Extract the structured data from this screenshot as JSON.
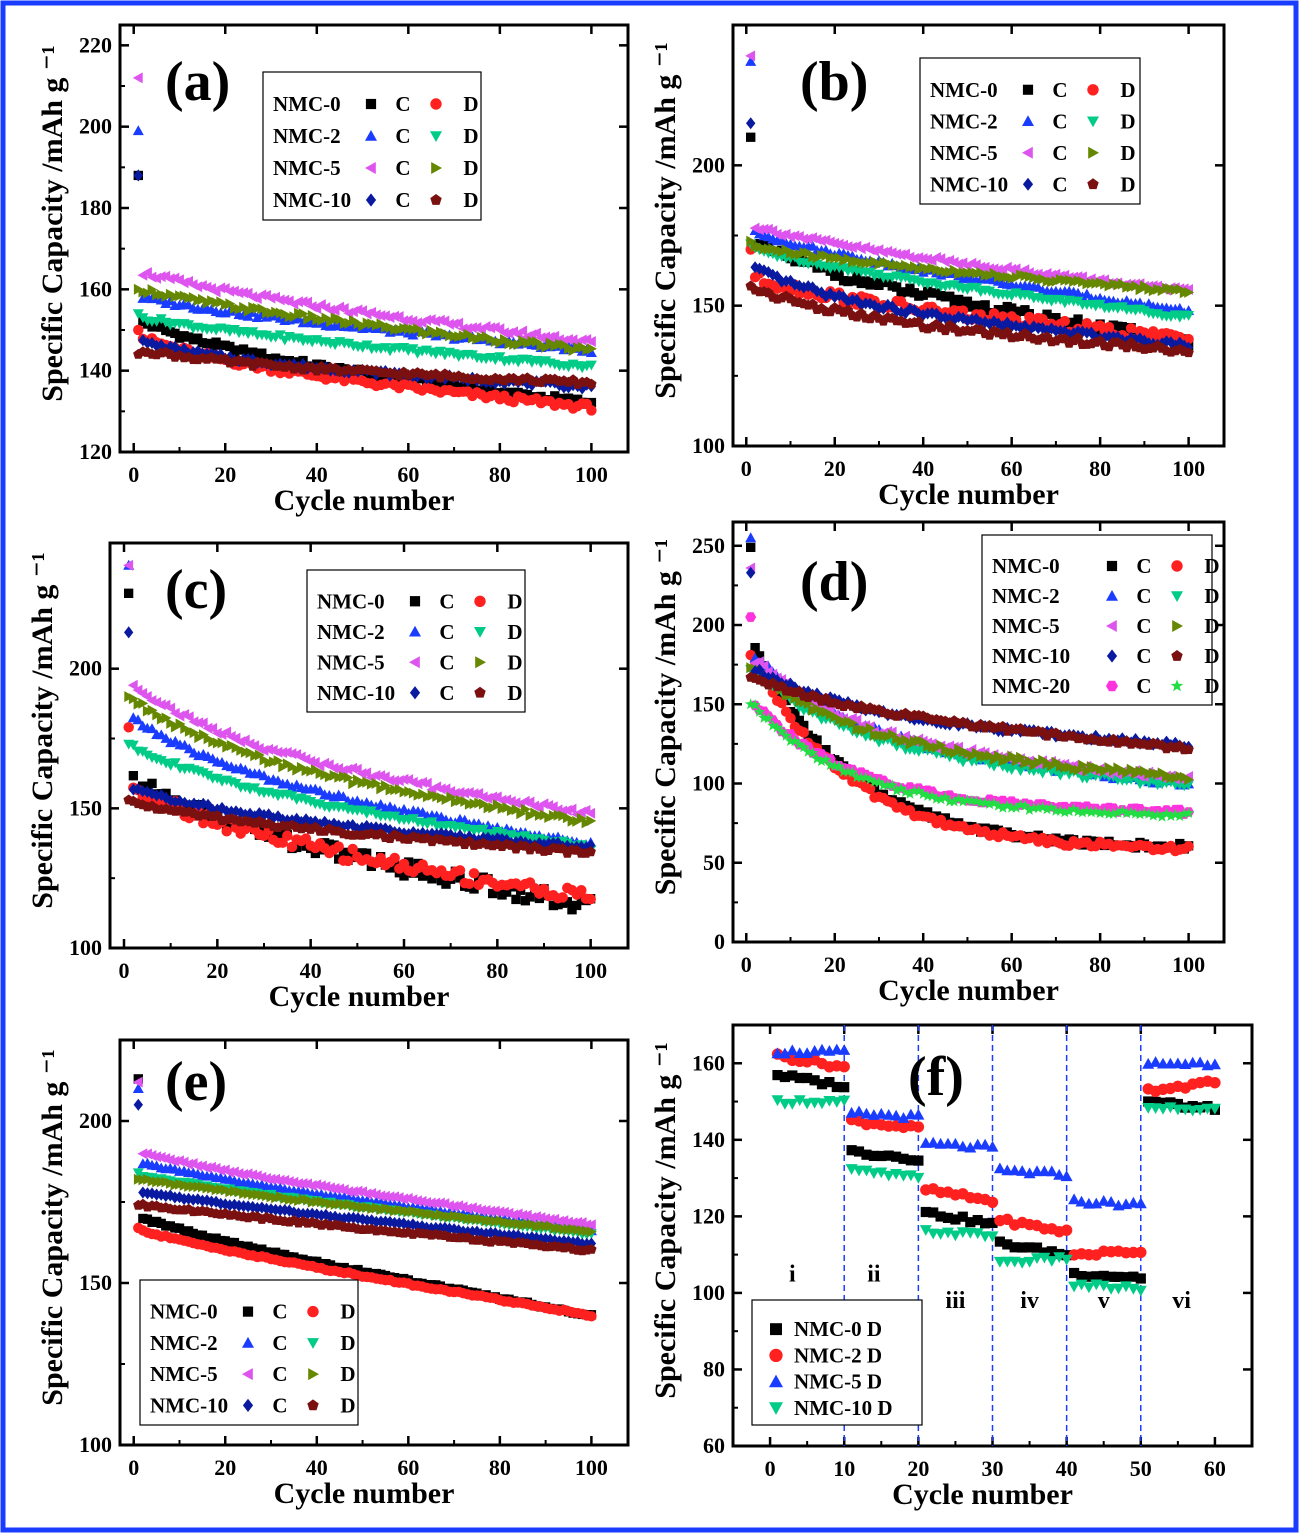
{
  "figure": {
    "border_color": "#1a3cff"
  },
  "legend_labels": {
    "C": "C",
    "D": "D"
  },
  "chart_data": [
    {
      "id": "a",
      "type": "scatter",
      "panel_label": "(a)",
      "xlabel": "Cycle number",
      "ylabel": "Specific Capacity /mAh g",
      "ylabel_sup": "-1",
      "xlim": [
        -3,
        108
      ],
      "ylim": [
        120,
        225
      ],
      "xticks": [
        0,
        20,
        40,
        60,
        80,
        100
      ],
      "yticks": [
        120,
        140,
        160,
        180,
        200,
        220
      ],
      "legend": {
        "position": "top-center",
        "entries": [
          "NMC-0",
          "NMC-2",
          "NMC-5",
          "NMC-10"
        ]
      },
      "series": [
        {
          "name": "NMC-0 C",
          "marker": "square",
          "color": "#000000",
          "first": 188,
          "start": 152,
          "end": 132,
          "curve": 0.35,
          "noise": 0.8
        },
        {
          "name": "NMC-0 D",
          "marker": "circle",
          "color": "#ff2020",
          "first": 150,
          "start": 148,
          "end": 131,
          "curve": 0.35,
          "noise": 0.8
        },
        {
          "name": "NMC-2 C",
          "marker": "triangle-up",
          "color": "#1a3cff",
          "first": 199,
          "start": 158,
          "end": 145,
          "curve": 0.2,
          "noise": 0.6
        },
        {
          "name": "NMC-2 D",
          "marker": "triangle-down",
          "color": "#00cc88",
          "first": 154,
          "start": 153,
          "end": 141,
          "curve": 0.2,
          "noise": 0.6
        },
        {
          "name": "NMC-5 C",
          "marker": "triangle-left",
          "color": "#dd55ee",
          "first": 212,
          "start": 164,
          "end": 147,
          "curve": 0.2,
          "noise": 0.7
        },
        {
          "name": "NMC-5 D",
          "marker": "triangle-right",
          "color": "#668800",
          "first": 160,
          "start": 160,
          "end": 145,
          "curve": 0.2,
          "noise": 0.7
        },
        {
          "name": "NMC-10 C",
          "marker": "diamond",
          "color": "#0a1aa0",
          "first": 188,
          "start": 147,
          "end": 136,
          "curve": 0.4,
          "noise": 0.6
        },
        {
          "name": "NMC-10 D",
          "marker": "pentagon",
          "color": "#7a1010",
          "first": 144,
          "start": 145,
          "end": 137,
          "curve": 0.4,
          "noise": 0.6
        }
      ]
    },
    {
      "id": "b",
      "type": "scatter",
      "panel_label": "(b)",
      "xlabel": "Cycle number",
      "ylabel": "Specific Capacity /mAh g",
      "ylabel_sup": "-1",
      "xlim": [
        -3,
        108
      ],
      "ylim": [
        100,
        250
      ],
      "xticks": [
        0,
        20,
        40,
        60,
        80,
        100
      ],
      "yticks": [
        100,
        150,
        200
      ],
      "legend": {
        "position": "top-right",
        "entries": [
          "NMC-0",
          "NMC-2",
          "NMC-5",
          "NMC-10"
        ]
      },
      "series": [
        {
          "name": "NMC-0 C",
          "marker": "square",
          "color": "#000000",
          "first": 210,
          "start": 172,
          "end": 137,
          "curve": 0.3,
          "noise": 1.8
        },
        {
          "name": "NMC-0 D",
          "marker": "circle",
          "color": "#ff2020",
          "first": 170,
          "start": 160,
          "end": 138,
          "curve": 0.3,
          "noise": 2.0
        },
        {
          "name": "NMC-2 C",
          "marker": "triangle-up",
          "color": "#1a3cff",
          "first": 237,
          "start": 176,
          "end": 148,
          "curve": 0.2,
          "noise": 0.8
        },
        {
          "name": "NMC-2 D",
          "marker": "triangle-down",
          "color": "#00cc88",
          "first": 172,
          "start": 170,
          "end": 146,
          "curve": 0.2,
          "noise": 0.8
        },
        {
          "name": "NMC-5 C",
          "marker": "triangle-left",
          "color": "#dd55ee",
          "first": 239,
          "start": 178,
          "end": 155,
          "curve": 0.2,
          "noise": 0.8
        },
        {
          "name": "NMC-5 D",
          "marker": "triangle-right",
          "color": "#668800",
          "first": 173,
          "start": 171,
          "end": 155,
          "curve": 0.2,
          "noise": 0.8
        },
        {
          "name": "NMC-10 C",
          "marker": "diamond",
          "color": "#0a1aa0",
          "first": 215,
          "start": 163,
          "end": 136,
          "curve": 0.45,
          "noise": 1.0
        },
        {
          "name": "NMC-10 D",
          "marker": "pentagon",
          "color": "#7a1010",
          "first": 157,
          "start": 156,
          "end": 134,
          "curve": 0.45,
          "noise": 1.2
        }
      ]
    },
    {
      "id": "c",
      "type": "scatter",
      "panel_label": "(c)",
      "xlabel": "Cycle number",
      "ylabel": "Specific Capacity /mAh g",
      "ylabel_sup": "-1",
      "xlim": [
        -3,
        108
      ],
      "ylim": [
        100,
        245
      ],
      "xticks": [
        0,
        20,
        40,
        60,
        80,
        100
      ],
      "yticks": [
        100,
        150,
        200
      ],
      "legend": {
        "position": "top-right",
        "entries": [
          "NMC-0",
          "NMC-2",
          "NMC-5",
          "NMC-10"
        ]
      },
      "series": [
        {
          "name": "NMC-0 C",
          "marker": "square",
          "color": "#000000",
          "first": 227,
          "start": 160,
          "end": 115,
          "curve": 0.3,
          "noise": 3.0
        },
        {
          "name": "NMC-0 D",
          "marker": "circle",
          "color": "#ff2020",
          "first": 179,
          "start": 158,
          "end": 118,
          "curve": 0.35,
          "noise": 2.5
        },
        {
          "name": "NMC-2 C",
          "marker": "triangle-up",
          "color": "#1a3cff",
          "first": 237,
          "start": 182,
          "end": 137,
          "curve": 0.4,
          "noise": 0.8
        },
        {
          "name": "NMC-2 D",
          "marker": "triangle-down",
          "color": "#00cc88",
          "first": 173,
          "start": 172,
          "end": 136,
          "curve": 0.35,
          "noise": 0.8
        },
        {
          "name": "NMC-5 C",
          "marker": "triangle-left",
          "color": "#dd55ee",
          "first": 237,
          "start": 194,
          "end": 148,
          "curve": 0.45,
          "noise": 1.0
        },
        {
          "name": "NMC-5 D",
          "marker": "triangle-right",
          "color": "#668800",
          "first": 190,
          "start": 189,
          "end": 145,
          "curve": 0.45,
          "noise": 1.0
        },
        {
          "name": "NMC-10 C",
          "marker": "diamond",
          "color": "#0a1aa0",
          "first": 213,
          "start": 157,
          "end": 136,
          "curve": 0.4,
          "noise": 0.8
        },
        {
          "name": "NMC-10 D",
          "marker": "pentagon",
          "color": "#7a1010",
          "first": 153,
          "start": 152,
          "end": 134,
          "curve": 0.3,
          "noise": 0.8
        }
      ]
    },
    {
      "id": "d",
      "type": "scatter",
      "panel_label": "(d)",
      "xlabel": "Cycle number",
      "ylabel": "Specific Capacity /mAh g",
      "ylabel_sup": "-1",
      "xlim": [
        -3,
        108
      ],
      "ylim": [
        0,
        265
      ],
      "xticks": [
        0,
        20,
        40,
        60,
        80,
        100
      ],
      "yticks": [
        0,
        50,
        100,
        150,
        200,
        250
      ],
      "legend": {
        "position": "top-right",
        "entries": [
          "NMC-0",
          "NMC-2",
          "NMC-5",
          "NMC-10",
          "NMC-20"
        ]
      },
      "series": [
        {
          "name": "NMC-0 C",
          "marker": "square",
          "color": "#000000",
          "first": 249,
          "start": 185,
          "end": 60,
          "curve": 1.0,
          "noise": 2.0
        },
        {
          "name": "NMC-0 D",
          "marker": "circle",
          "color": "#ff2020",
          "first": 181,
          "start": 178,
          "end": 59,
          "curve": 1.0,
          "noise": 2.0
        },
        {
          "name": "NMC-2 C",
          "marker": "triangle-up",
          "color": "#1a3cff",
          "first": 255,
          "start": 180,
          "end": 100,
          "curve": 0.7,
          "noise": 2.0
        },
        {
          "name": "NMC-2 D",
          "marker": "triangle-down",
          "color": "#00cc88",
          "first": 172,
          "start": 170,
          "end": 99,
          "curve": 0.7,
          "noise": 2.0
        },
        {
          "name": "NMC-5 C",
          "marker": "triangle-left",
          "color": "#dd55ee",
          "first": 236,
          "start": 178,
          "end": 103,
          "curve": 0.7,
          "noise": 2.0
        },
        {
          "name": "NMC-5 D",
          "marker": "triangle-right",
          "color": "#668800",
          "first": 173,
          "start": 172,
          "end": 104,
          "curve": 0.7,
          "noise": 2.0
        },
        {
          "name": "NMC-10 C",
          "marker": "diamond",
          "color": "#0a1aa0",
          "first": 233,
          "start": 172,
          "end": 124,
          "curve": 0.6,
          "noise": 1.5
        },
        {
          "name": "NMC-10 D",
          "marker": "pentagon",
          "color": "#7a1010",
          "first": 167,
          "start": 166,
          "end": 122,
          "curve": 0.4,
          "noise": 1.5
        },
        {
          "name": "NMC-20 C",
          "marker": "hexagon",
          "color": "#ff33dd",
          "first": 205,
          "start": 150,
          "end": 82,
          "curve": 0.95,
          "noise": 1.5
        },
        {
          "name": "NMC-20 D",
          "marker": "star",
          "color": "#22dd44",
          "first": 150,
          "start": 148,
          "end": 80,
          "curve": 0.95,
          "noise": 1.5
        }
      ]
    },
    {
      "id": "e",
      "type": "scatter",
      "panel_label": "(e)",
      "xlabel": "Cycle number",
      "ylabel": "Specific Capacity /mAh g",
      "ylabel_sup": "-1",
      "xlim": [
        -3,
        108
      ],
      "ylim": [
        100,
        225
      ],
      "xticks": [
        0,
        20,
        40,
        60,
        80,
        100
      ],
      "yticks": [
        100,
        150,
        200
      ],
      "legend": {
        "position": "bottom-left",
        "entries": [
          "NMC-0",
          "NMC-2",
          "NMC-5",
          "NMC-10"
        ]
      },
      "series": [
        {
          "name": "NMC-0 C",
          "marker": "square",
          "color": "#000000",
          "first": 213,
          "start": 170,
          "end": 140,
          "curve": 0.15,
          "noise": 0.4
        },
        {
          "name": "NMC-0 D",
          "marker": "circle",
          "color": "#ff2020",
          "first": 167,
          "start": 166,
          "end": 140,
          "curve": 0.1,
          "noise": 0.3
        },
        {
          "name": "NMC-2 C",
          "marker": "triangle-up",
          "color": "#1a3cff",
          "first": 210,
          "start": 187,
          "end": 166,
          "curve": 0.15,
          "noise": 0.3
        },
        {
          "name": "NMC-2 D",
          "marker": "triangle-down",
          "color": "#00cc88",
          "first": 184,
          "start": 183,
          "end": 165,
          "curve": 0.1,
          "noise": 0.3
        },
        {
          "name": "NMC-5 C",
          "marker": "triangle-left",
          "color": "#dd55ee",
          "first": 212,
          "start": 190,
          "end": 168,
          "curve": 0.15,
          "noise": 0.3
        },
        {
          "name": "NMC-5 D",
          "marker": "triangle-right",
          "color": "#668800",
          "first": 182,
          "start": 182,
          "end": 166,
          "curve": 0.1,
          "noise": 0.3
        },
        {
          "name": "NMC-10 C",
          "marker": "diamond",
          "color": "#0a1aa0",
          "first": 205,
          "start": 178,
          "end": 162,
          "curve": 0.1,
          "noise": 0.3
        },
        {
          "name": "NMC-10 D",
          "marker": "pentagon",
          "color": "#7a1010",
          "first": 174,
          "start": 174,
          "end": 160,
          "curve": 0.05,
          "noise": 0.4
        }
      ]
    },
    {
      "id": "f",
      "type": "scatter",
      "panel_label": "(f)",
      "xlabel": "Cycle number",
      "ylabel": "Specific Capacity /mAh g",
      "ylabel_sup": "-1",
      "xlim": [
        -5,
        65
      ],
      "ylim": [
        60,
        170
      ],
      "xticks": [
        0,
        10,
        20,
        30,
        40,
        50,
        60
      ],
      "yticks": [
        60,
        80,
        100,
        120,
        140,
        160
      ],
      "vlines": [
        10,
        20,
        30,
        40,
        50
      ],
      "regions": [
        {
          "label": "i",
          "x": 3,
          "y": 103
        },
        {
          "label": "ii",
          "x": 14,
          "y": 103
        },
        {
          "label": "iii",
          "x": 25,
          "y": 96
        },
        {
          "label": "iv",
          "x": 35,
          "y": 96
        },
        {
          "label": "v",
          "x": 45,
          "y": 96
        },
        {
          "label": "vi",
          "x": 55.5,
          "y": 96
        }
      ],
      "legend": {
        "position": "bottom-left",
        "entries": [
          "NMC-0 D",
          "NMC-2 D",
          "NMC-5 D",
          "NMC-10 D"
        ]
      },
      "series": [
        {
          "name": "NMC-0 D",
          "marker": "square",
          "color": "#000000",
          "segments": [
            [
              157,
              154
            ],
            [
              137,
              135
            ],
            [
              121,
              118
            ],
            [
              113,
              110
            ],
            [
              105,
              104
            ],
            [
              150,
              148
            ]
          ]
        },
        {
          "name": "NMC-2 D",
          "marker": "circle",
          "color": "#ff2020",
          "segments": [
            [
              162,
              159
            ],
            [
              145,
              143
            ],
            [
              127,
              124
            ],
            [
              119,
              116
            ],
            [
              110,
              111
            ],
            [
              153,
              155
            ]
          ]
        },
        {
          "name": "NMC-5 D",
          "marker": "triangle-up",
          "color": "#1a3cff",
          "segments": [
            [
              163,
              163
            ],
            [
              147,
              146
            ],
            [
              139,
              138
            ],
            [
              132,
              131
            ],
            [
              124,
              123
            ],
            [
              160,
              160
            ]
          ]
        },
        {
          "name": "NMC-10 D",
          "marker": "triangle-down",
          "color": "#00cc88",
          "segments": [
            [
              150,
              150
            ],
            [
              132,
              130
            ],
            [
              116,
              115
            ],
            [
              108,
              109
            ],
            [
              102,
              101
            ],
            [
              148,
              148
            ]
          ]
        }
      ]
    }
  ]
}
